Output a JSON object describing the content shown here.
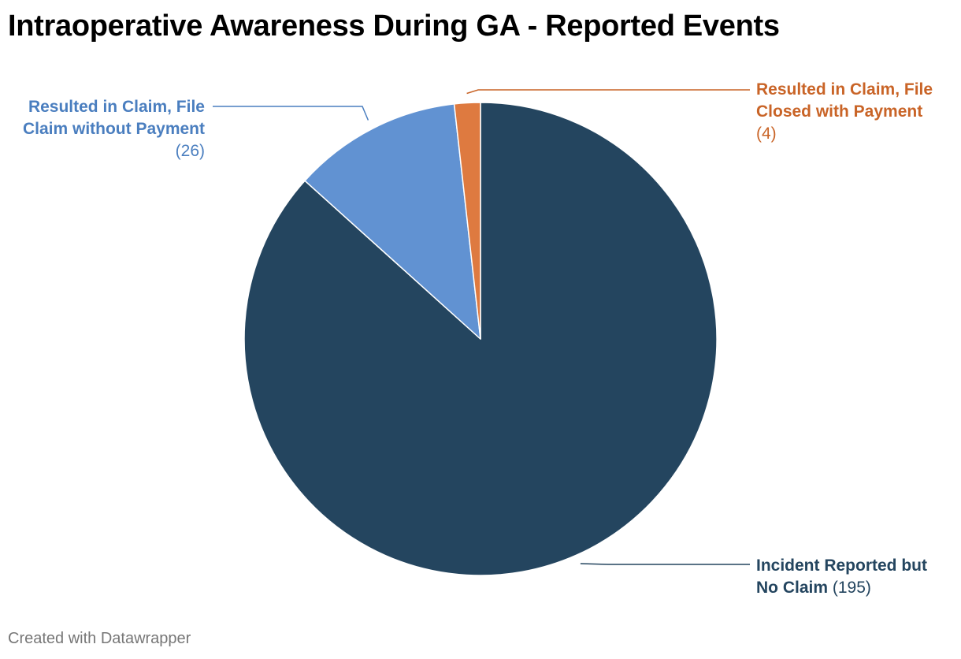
{
  "title": "Intraoperative Awareness During GA - Reported Events",
  "footer": "Created with Datawrapper",
  "chart_data": {
    "type": "pie",
    "title": "Intraoperative Awareness During GA - Reported Events",
    "slices": [
      {
        "label": "Incident Reported but No Claim",
        "value": 195,
        "value_text": "(195)",
        "color": "#24455f"
      },
      {
        "label": "Resulted in Claim, File Claim without Payment",
        "value": 26,
        "value_text": "(26)",
        "color": "#6192d2"
      },
      {
        "label": "Resulted in Claim, File Closed with Payment",
        "value": 4,
        "value_text": "(4)",
        "color": "#de7a40"
      }
    ],
    "label_colors": [
      "#24455f",
      "#4a7ebf",
      "#c96427"
    ],
    "start_angle": "12 o'clock",
    "direction": "clockwise"
  }
}
